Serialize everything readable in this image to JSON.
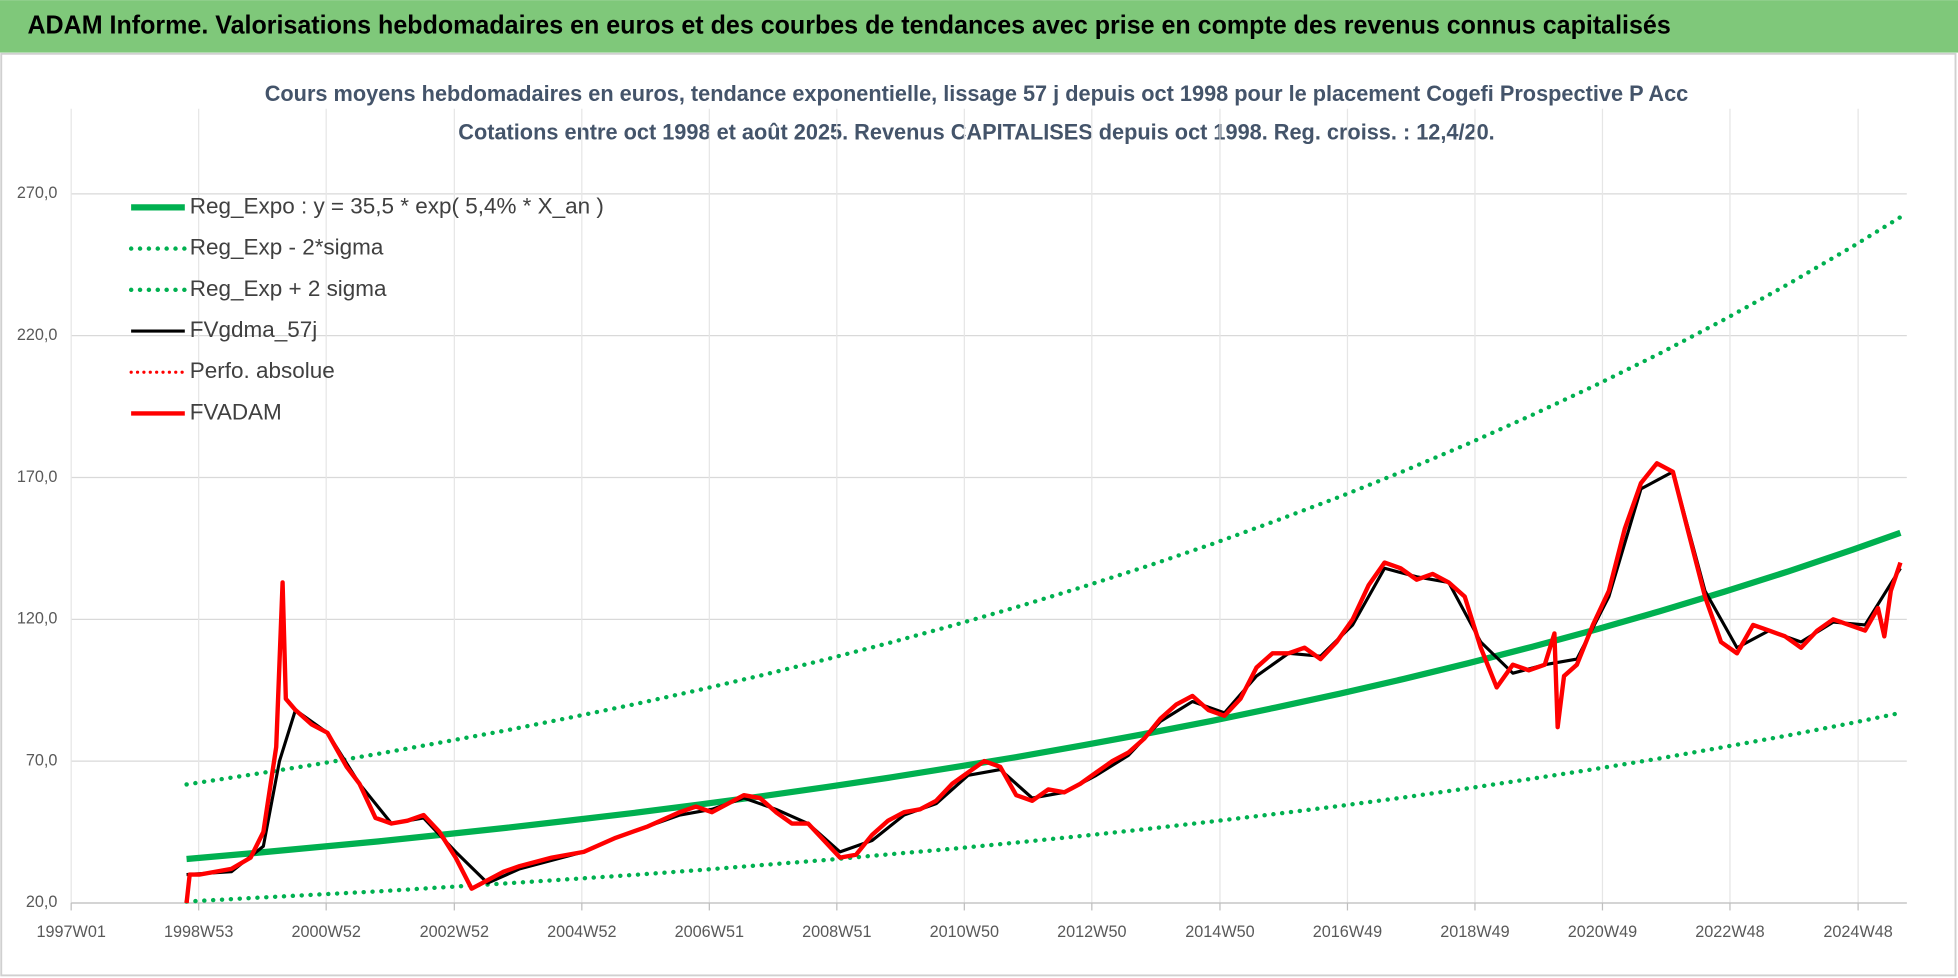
{
  "header": {
    "title": "ADAM Informe. Valorisations hebdomadaires en euros et des courbes de tendances avec prise en compte des revenus connus capitalisés"
  },
  "chart_data": {
    "type": "line",
    "title": "Cours moyens hebdomadaires en euros, tendance exponentielle, lissage 57 j depuis oct 1998 pour le placement Cogefi Prospective P Acc",
    "subtitle": "Cotations entre oct 1998 et août 2025.  Revenus CAPITALISES depuis oct 1998.  Reg. croiss. : 12,4/20.",
    "xlim": [
      1997.0,
      2025.65
    ],
    "xticks": [
      {
        "value": 1997.0,
        "label": "1997W01"
      },
      {
        "value": 1998.99,
        "label": "1998W53"
      },
      {
        "value": 2000.98,
        "label": "2000W52"
      },
      {
        "value": 2002.98,
        "label": "2002W52"
      },
      {
        "value": 2004.97,
        "label": "2004W52"
      },
      {
        "value": 2006.96,
        "label": "2006W51"
      },
      {
        "value": 2008.95,
        "label": "2008W51"
      },
      {
        "value": 2010.94,
        "label": "2010W50"
      },
      {
        "value": 2012.93,
        "label": "2012W50"
      },
      {
        "value": 2014.93,
        "label": "2014W50"
      },
      {
        "value": 2016.92,
        "label": "2016W49"
      },
      {
        "value": 2018.91,
        "label": "2018W49"
      },
      {
        "value": 2020.9,
        "label": "2020W49"
      },
      {
        "value": 2022.89,
        "label": "2022W48"
      },
      {
        "value": 2024.89,
        "label": "2024W48"
      }
    ],
    "ylim": [
      20,
      300
    ],
    "yticks": [
      {
        "value": 20,
        "label": "20,0"
      },
      {
        "value": 70,
        "label": "70,0"
      },
      {
        "value": 120,
        "label": "120,0"
      },
      {
        "value": 170,
        "label": "170,0"
      },
      {
        "value": 220,
        "label": "220,0"
      },
      {
        "value": 270,
        "label": "270,0"
      }
    ],
    "grid": true,
    "legend": "top-left",
    "series": [
      {
        "name": "Reg_Expo : y = 35,5 * exp( 5,4% *  X_an )",
        "color": "#00b050",
        "dash": "solid",
        "width": 5,
        "x": [
          1998.8,
          1999.8,
          2000.8,
          2001.8,
          2002.8,
          2003.8,
          2004.8,
          2005.8,
          2006.8,
          2007.8,
          2008.8,
          2009.8,
          2010.8,
          2011.8,
          2012.8,
          2013.8,
          2014.8,
          2015.8,
          2016.8,
          2017.8,
          2018.8,
          2019.8,
          2020.8,
          2021.8,
          2022.8,
          2023.8,
          2024.8,
          2025.55
        ],
        "values": [
          35.5,
          37.5,
          39.6,
          41.7,
          44.1,
          46.5,
          49.1,
          51.8,
          54.7,
          57.7,
          60.9,
          64.3,
          67.9,
          71.6,
          75.6,
          79.8,
          84.2,
          88.9,
          93.8,
          99.0,
          104.5,
          110.3,
          116.4,
          122.9,
          129.7,
          136.9,
          144.5,
          150.5
        ]
      },
      {
        "name": "Reg_Exp - 2*sigma",
        "color": "#00b050",
        "dash": "dotted",
        "width": 3.5,
        "x": [
          1998.8,
          1999.8,
          2000.8,
          2001.8,
          2002.8,
          2003.8,
          2004.8,
          2005.8,
          2006.8,
          2007.8,
          2008.8,
          2009.8,
          2010.8,
          2011.8,
          2012.8,
          2013.8,
          2014.8,
          2015.8,
          2016.8,
          2017.8,
          2018.8,
          2019.8,
          2020.8,
          2021.8,
          2022.8,
          2023.8,
          2024.8,
          2025.55
        ],
        "values": [
          20.5,
          21.7,
          22.9,
          24.1,
          25.5,
          26.9,
          28.4,
          29.9,
          31.6,
          33.4,
          35.2,
          37.2,
          39.2,
          41.4,
          43.7,
          46.1,
          48.7,
          51.4,
          54.2,
          57.2,
          60.4,
          63.8,
          67.3,
          71.0,
          75.0,
          79.1,
          83.5,
          87.0
        ]
      },
      {
        "name": "Reg_Exp + 2 sigma",
        "color": "#00b050",
        "dash": "dotted",
        "width": 3.5,
        "x": [
          1998.8,
          1999.8,
          2000.8,
          2001.8,
          2002.8,
          2003.8,
          2004.8,
          2005.8,
          2006.8,
          2007.8,
          2008.8,
          2009.8,
          2010.8,
          2011.8,
          2012.8,
          2013.8,
          2014.8,
          2015.8,
          2016.8,
          2017.8,
          2018.8,
          2019.8,
          2020.8,
          2021.8,
          2022.8,
          2023.8,
          2024.8,
          2025.55
        ],
        "values": [
          61.8,
          65.2,
          68.8,
          72.6,
          76.7,
          80.9,
          85.4,
          90.1,
          95.1,
          100.4,
          106.0,
          111.9,
          118.1,
          124.6,
          131.5,
          138.8,
          146.5,
          154.7,
          163.2,
          172.3,
          181.9,
          192.0,
          202.6,
          213.8,
          225.7,
          238.2,
          251.4,
          261.8
        ]
      },
      {
        "name": "FVgdma_57j",
        "color": "#000000",
        "dash": "solid",
        "width": 2.5,
        "x": [
          1998.8,
          1999.5,
          2000.0,
          2000.25,
          2000.5,
          2001.0,
          2001.5,
          2002.0,
          2002.5,
          2003.0,
          2003.5,
          2004.0,
          2004.5,
          2005.0,
          2005.5,
          2006.0,
          2006.5,
          2007.0,
          2007.5,
          2008.0,
          2008.5,
          2009.0,
          2009.5,
          2010.0,
          2010.5,
          2011.0,
          2011.5,
          2012.0,
          2012.5,
          2013.0,
          2013.5,
          2014.0,
          2014.5,
          2015.0,
          2015.5,
          2016.0,
          2016.5,
          2017.0,
          2017.5,
          2018.0,
          2018.5,
          2019.0,
          2019.5,
          2020.0,
          2020.5,
          2021.0,
          2021.5,
          2022.0,
          2022.5,
          2023.0,
          2023.5,
          2024.0,
          2024.5,
          2025.0,
          2025.55
        ],
        "values": [
          30,
          31,
          40,
          70,
          88,
          80,
          62,
          48,
          50,
          38,
          27,
          32,
          35,
          38,
          43,
          47,
          51,
          53,
          57,
          53,
          48,
          38,
          42,
          51,
          55,
          65,
          67,
          57,
          59,
          65,
          72,
          84,
          91,
          87,
          100,
          108,
          107,
          118,
          138,
          135,
          133,
          112,
          101,
          104,
          106,
          128,
          166,
          172,
          130,
          110,
          116,
          112,
          119,
          118,
          138
        ]
      },
      {
        "name": "Perfo. absolue",
        "color": "#ff0000",
        "dash": "dotted",
        "width": 2.5
      },
      {
        "name": "FVADAM",
        "color": "#ff0000",
        "dash": "solid",
        "width": 3.5,
        "x": [
          1998.8,
          1998.85,
          1999.0,
          1999.5,
          1999.8,
          2000.0,
          2000.2,
          2000.3,
          2000.35,
          2000.5,
          2000.75,
          2001.0,
          2001.3,
          2001.5,
          2001.75,
          2002.0,
          2002.25,
          2002.5,
          2002.75,
          2003.0,
          2003.25,
          2003.5,
          2003.75,
          2004.0,
          2004.5,
          2005.0,
          2005.5,
          2006.0,
          2006.5,
          2006.75,
          2007.0,
          2007.5,
          2007.75,
          2008.0,
          2008.25,
          2008.5,
          2008.75,
          2009.0,
          2009.25,
          2009.5,
          2009.75,
          2010.0,
          2010.25,
          2010.5,
          2010.75,
          2011.0,
          2011.25,
          2011.5,
          2011.75,
          2012.0,
          2012.25,
          2012.5,
          2012.75,
          2013.0,
          2013.25,
          2013.5,
          2013.75,
          2014.0,
          2014.25,
          2014.5,
          2014.75,
          2015.0,
          2015.25,
          2015.5,
          2015.75,
          2016.0,
          2016.25,
          2016.5,
          2016.75,
          2017.0,
          2017.25,
          2017.5,
          2017.75,
          2018.0,
          2018.25,
          2018.5,
          2018.75,
          2019.0,
          2019.25,
          2019.5,
          2019.75,
          2020.0,
          2020.15,
          2020.2,
          2020.3,
          2020.5,
          2020.75,
          2021.0,
          2021.25,
          2021.5,
          2021.75,
          2022.0,
          2022.25,
          2022.5,
          2022.75,
          2023.0,
          2023.25,
          2023.5,
          2023.75,
          2024.0,
          2024.25,
          2024.5,
          2024.75,
          2025.0,
          2025.2,
          2025.3,
          2025.4,
          2025.55
        ],
        "values": [
          20,
          30,
          30,
          32,
          36,
          45,
          75,
          133,
          92,
          88,
          83,
          80,
          68,
          62,
          50,
          48,
          49,
          51,
          45,
          36,
          25,
          28,
          31,
          33,
          36,
          38,
          43,
          47,
          52,
          54,
          52,
          58,
          57,
          52,
          48,
          48,
          42,
          36,
          37,
          44,
          49,
          52,
          53,
          56,
          62,
          66,
          70,
          68,
          58,
          56,
          60,
          59,
          62,
          66,
          70,
          73,
          78,
          85,
          90,
          93,
          88,
          86,
          92,
          103,
          108,
          108,
          110,
          106,
          112,
          120,
          132,
          140,
          138,
          134,
          136,
          133,
          128,
          110,
          96,
          104,
          102,
          104,
          115,
          82,
          100,
          104,
          118,
          130,
          152,
          168,
          175,
          172,
          150,
          128,
          112,
          108,
          118,
          116,
          114,
          110,
          116,
          120,
          118,
          116,
          124,
          114,
          130,
          140
        ]
      }
    ]
  }
}
